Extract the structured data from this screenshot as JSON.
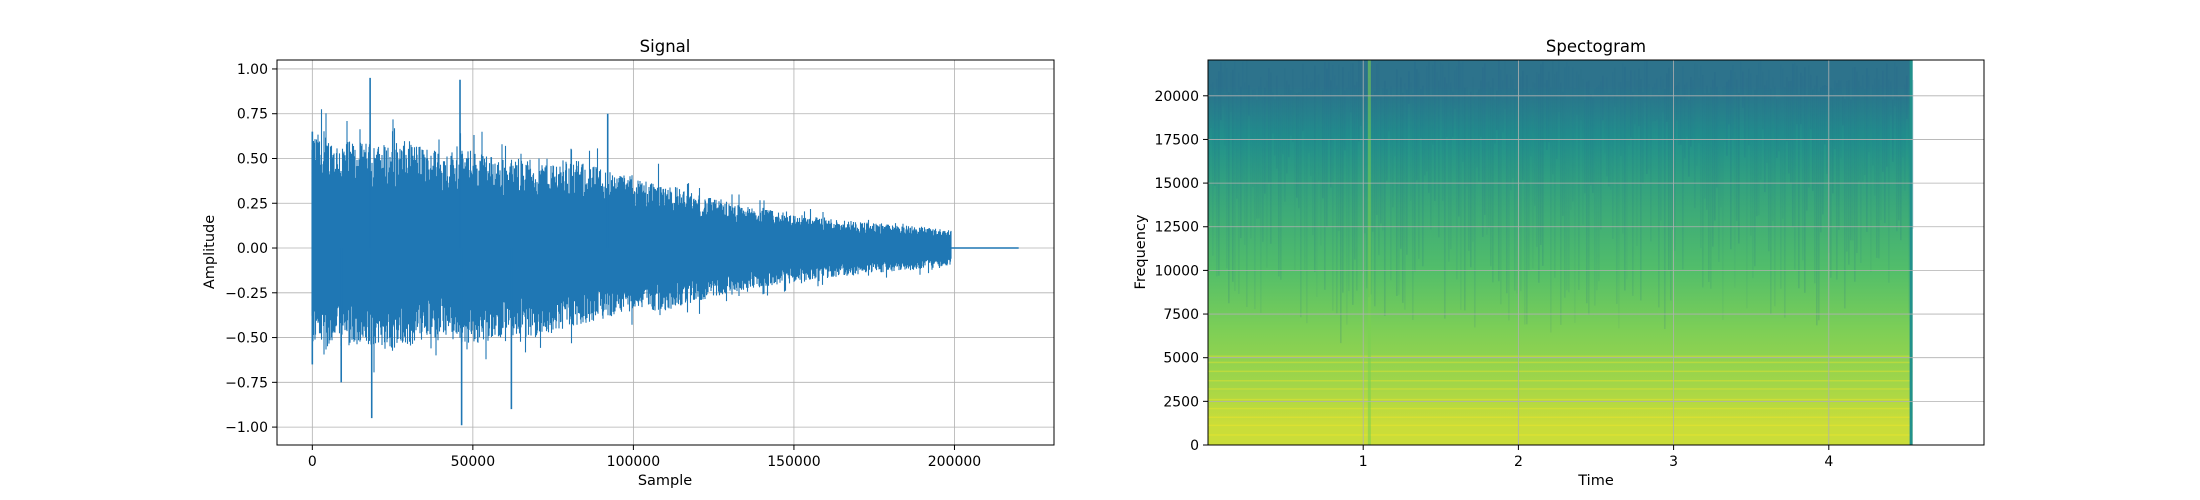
{
  "chart_data": [
    {
      "type": "line",
      "title": "Signal",
      "xlabel": "Sample",
      "ylabel": "Amplitude",
      "xlim": [
        -11000,
        231000
      ],
      "ylim": [
        -1.1,
        1.05
      ],
      "xticks": [
        0,
        50000,
        100000,
        150000,
        200000
      ],
      "xtick_labels": [
        "0",
        "50000",
        "100000",
        "150000",
        "200000"
      ],
      "yticks": [
        -1.0,
        -0.75,
        -0.5,
        -0.25,
        0.0,
        0.25,
        0.5,
        0.75,
        1.0
      ],
      "ytick_labels": [
        "−1.00",
        "−0.75",
        "−0.50",
        "−0.25",
        "0.00",
        "0.25",
        "0.50",
        "0.75",
        "1.00"
      ],
      "grid": true,
      "color": "#1f77b4",
      "series": [
        {
          "description_values": "audio waveform envelope",
          "x": [
            0,
            10000,
            20000,
            30000,
            40000,
            50000,
            60000,
            70000,
            80000,
            90000,
            100000,
            110000,
            120000,
            130000,
            140000,
            150000,
            160000,
            170000,
            180000,
            190000,
            199000,
            220000
          ],
          "upper": [
            0.65,
            0.6,
            0.58,
            0.6,
            0.55,
            0.55,
            0.5,
            0.5,
            0.5,
            0.45,
            0.4,
            0.37,
            0.3,
            0.25,
            0.22,
            0.19,
            0.17,
            0.15,
            0.13,
            0.12,
            0.1,
            0.0
          ],
          "lower": [
            -0.55,
            -0.55,
            -0.58,
            -0.55,
            -0.5,
            -0.55,
            -0.5,
            -0.5,
            -0.45,
            -0.4,
            -0.35,
            -0.35,
            -0.3,
            -0.25,
            -0.22,
            -0.19,
            -0.17,
            -0.15,
            -0.13,
            -0.12,
            -0.1,
            0.0
          ],
          "peaks": [
            [
              18000,
              0.95
            ],
            [
              46000,
              0.94
            ],
            [
              92000,
              0.75
            ],
            [
              18500,
              -0.95
            ],
            [
              46500,
              -0.99
            ],
            [
              62000,
              -0.9
            ],
            [
              9000,
              -0.75
            ],
            [
              0,
              0.65
            ],
            [
              0,
              -0.65
            ]
          ]
        }
      ]
    },
    {
      "type": "heatmap",
      "title": "Spectogram",
      "xlabel": "Time",
      "ylabel": "Frequency",
      "xlim": [
        0,
        5.0
      ],
      "data_xmax": 4.54,
      "ylim": [
        0,
        22050
      ],
      "xticks": [
        1,
        2,
        3,
        4
      ],
      "xtick_labels": [
        "1",
        "2",
        "3",
        "4"
      ],
      "yticks": [
        0,
        2500,
        5000,
        7500,
        10000,
        12500,
        15000,
        17500,
        20000
      ],
      "ytick_labels": [
        "0",
        "2500",
        "5000",
        "7500",
        "10000",
        "12500",
        "15000",
        "17500",
        "20000"
      ],
      "grid": true,
      "colormap": "viridis",
      "bands": [
        {
          "f0": 0,
          "f1": 2500,
          "level": 0.92
        },
        {
          "f0": 2500,
          "f1": 5000,
          "level": 0.85
        },
        {
          "f0": 5000,
          "f1": 8000,
          "level": 0.8
        },
        {
          "f0": 8000,
          "f1": 12000,
          "level": 0.7
        },
        {
          "f0": 12000,
          "f1": 16000,
          "level": 0.6
        },
        {
          "f0": 16000,
          "f1": 19000,
          "level": 0.5
        },
        {
          "f0": 19000,
          "f1": 22050,
          "level": 0.38
        }
      ]
    }
  ]
}
